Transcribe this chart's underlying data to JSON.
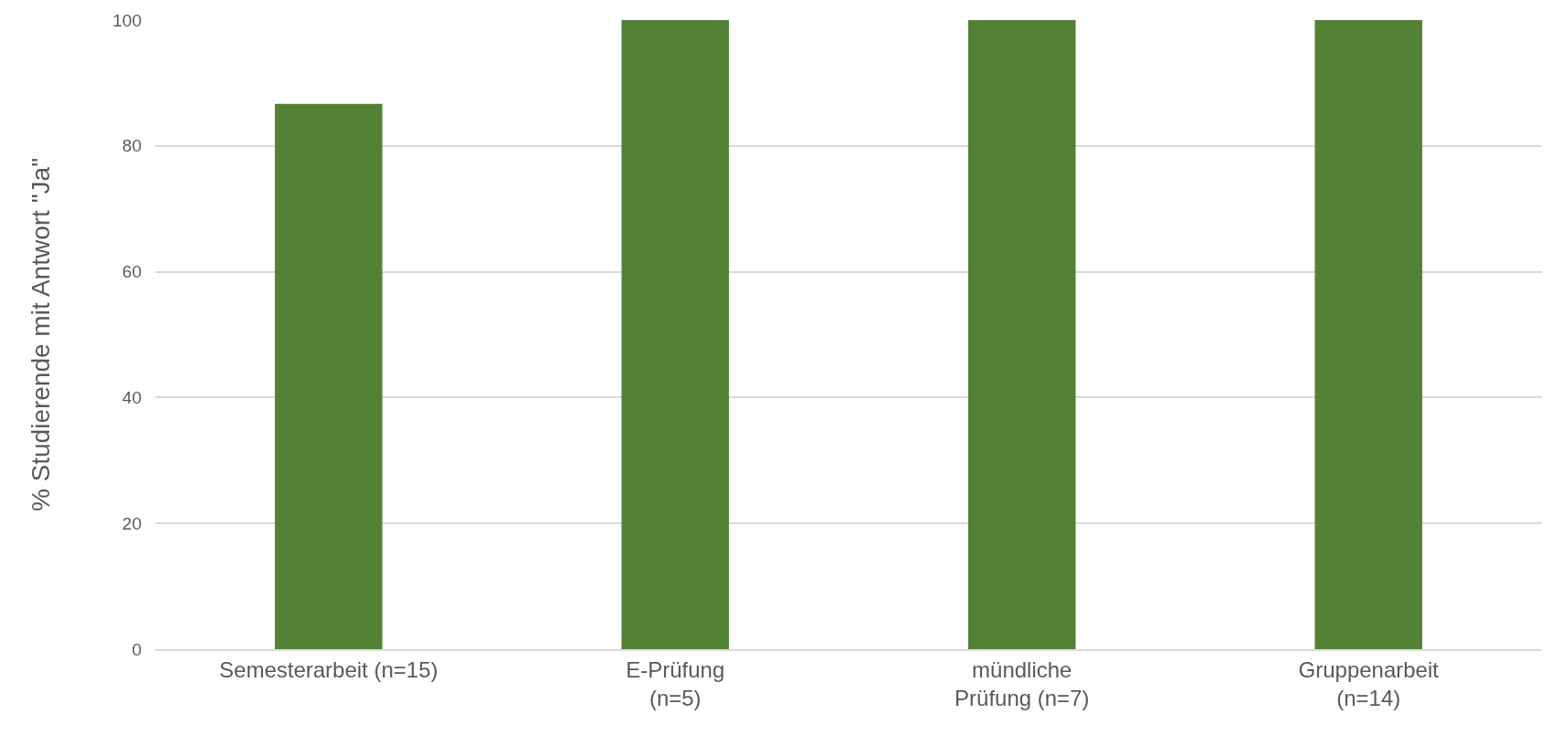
{
  "chart_data": {
    "type": "bar",
    "ylabel": "% Studierende mit Antwort \"Ja\"",
    "categories": [
      "Semesterarbeit (n=15)",
      "E-Prüfung\n(n=5)",
      "mündliche\nPrüfung (n=7)",
      "Gruppenarbeit\n(n=14)"
    ],
    "values": [
      86.7,
      100,
      100,
      100
    ],
    "color": "#538135",
    "ylim": [
      0,
      100
    ],
    "yticks": [
      0,
      20,
      40,
      60,
      80,
      100
    ],
    "grid": "y",
    "legend": false
  }
}
